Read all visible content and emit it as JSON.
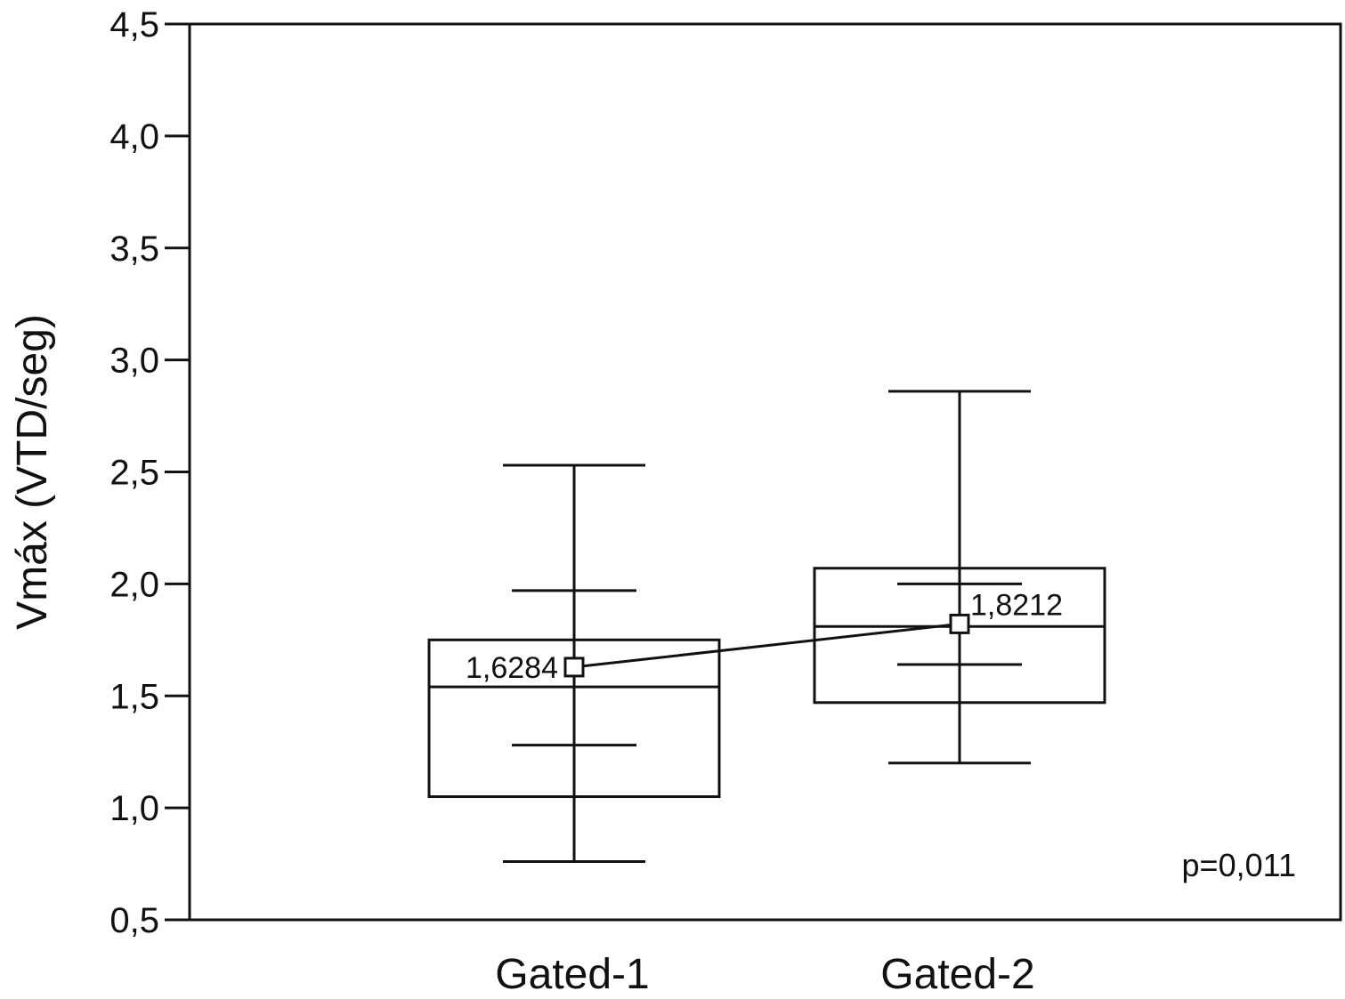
{
  "chart_data": {
    "type": "box",
    "title": "",
    "xlabel": "",
    "ylabel": "Vmáx (VTD/seg)",
    "ylim": [
      0.5,
      4.5
    ],
    "yticks": [
      {
        "value": 0.5,
        "label": "0,5"
      },
      {
        "value": 1.0,
        "label": "1,0"
      },
      {
        "value": 1.5,
        "label": "1,5"
      },
      {
        "value": 2.0,
        "label": "2,0"
      },
      {
        "value": 2.5,
        "label": "2,5"
      },
      {
        "value": 3.0,
        "label": "3,0"
      },
      {
        "value": 3.5,
        "label": "3,5"
      },
      {
        "value": 4.0,
        "label": "4,0"
      },
      {
        "value": 4.5,
        "label": "4,5"
      }
    ],
    "grid": false,
    "categories": [
      "Gated-1",
      "Gated-2"
    ],
    "groups": [
      {
        "category": "Gated-1",
        "whisker_low": 0.76,
        "q1": 1.05,
        "median": 1.54,
        "q3": 1.75,
        "whisker_high": 2.53,
        "inner_low": 1.28,
        "inner_high": 1.97,
        "mean": 1.6284,
        "mean_label": "1,6284"
      },
      {
        "category": "Gated-2",
        "whisker_low": 1.2,
        "q1": 1.47,
        "median": 1.81,
        "q3": 2.07,
        "whisker_high": 2.86,
        "inner_low": 1.64,
        "inner_high": 2.0,
        "mean": 1.8212,
        "mean_label": "1,8212"
      }
    ],
    "annotation": "p=0,011"
  }
}
